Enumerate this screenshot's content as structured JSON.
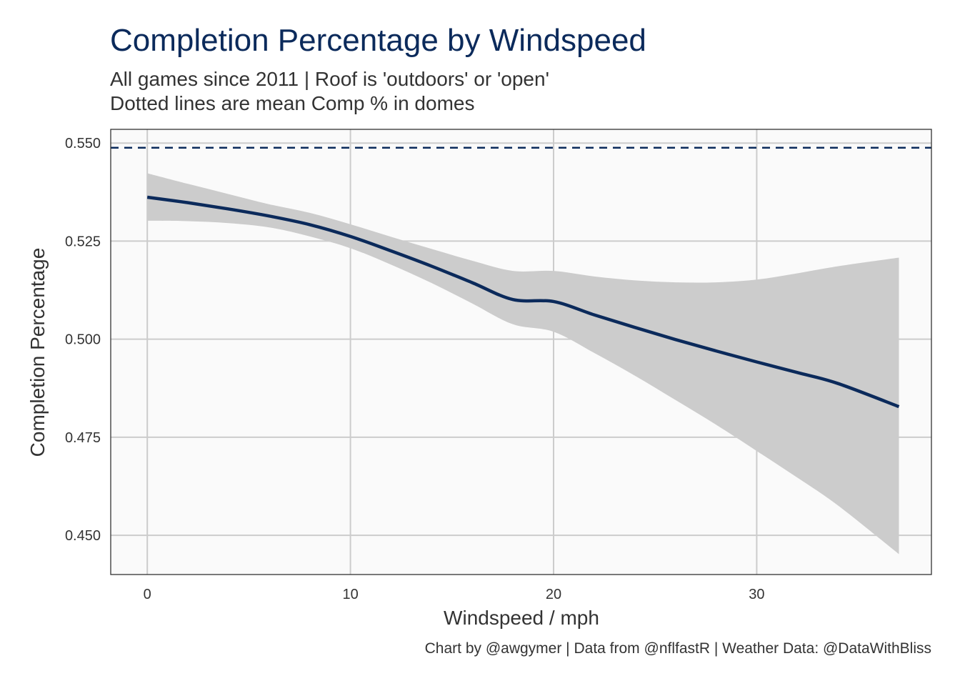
{
  "chart_data": {
    "type": "line",
    "title": "Completion Percentage by Windspeed",
    "subtitle_line1": "All games since 2011 | Roof is 'outdoors' or 'open'",
    "subtitle_line2": "Dotted lines are mean Comp % in domes",
    "xlabel": "Windspeed / mph",
    "ylabel": "Completion Percentage",
    "caption": "Chart by @awgymer | Data from @nflfastR | Weather Data: @DataWithBliss",
    "xlim": [
      -1.8,
      38.6
    ],
    "ylim": [
      0.44,
      0.5535
    ],
    "x_ticks": [
      0,
      10,
      20,
      30
    ],
    "x_tick_labels": [
      "0",
      "10",
      "20",
      "30"
    ],
    "y_ticks": [
      0.45,
      0.475,
      0.5,
      0.525,
      0.55
    ],
    "y_tick_labels": [
      "0.450",
      "0.475",
      "0.500",
      "0.525",
      "0.550"
    ],
    "grid": true,
    "colors": {
      "line": "#0b2a5b",
      "ribbon": "#cccccc",
      "panel_bg": "#fafafa",
      "grid": "#cccccc",
      "reference": "#0b2a5b"
    },
    "reference_line": {
      "y": 0.5488,
      "style": "dashed"
    },
    "series": [
      {
        "x": [
          0,
          2,
          4,
          6,
          8,
          10,
          12,
          14,
          16,
          18,
          20,
          22,
          24,
          26,
          28,
          30,
          32,
          34,
          37
        ],
        "y": [
          0.5362,
          0.5348,
          0.5332,
          0.5314,
          0.5292,
          0.5262,
          0.5225,
          0.5186,
          0.5144,
          0.5101,
          0.5096,
          0.5062,
          0.503,
          0.4999,
          0.497,
          0.4942,
          0.4915,
          0.4887,
          0.4828
        ],
        "lower": [
          0.5302,
          0.5301,
          0.5296,
          0.5285,
          0.5262,
          0.5232,
          0.519,
          0.5143,
          0.5091,
          0.5038,
          0.5019,
          0.4965,
          0.4907,
          0.4845,
          0.4782,
          0.4715,
          0.4647,
          0.4576,
          0.4452
        ],
        "upper": [
          0.5423,
          0.5396,
          0.537,
          0.5344,
          0.5322,
          0.5293,
          0.5261,
          0.523,
          0.52,
          0.5174,
          0.5174,
          0.516,
          0.515,
          0.5145,
          0.5145,
          0.5152,
          0.5168,
          0.5186,
          0.5208
        ]
      }
    ]
  }
}
